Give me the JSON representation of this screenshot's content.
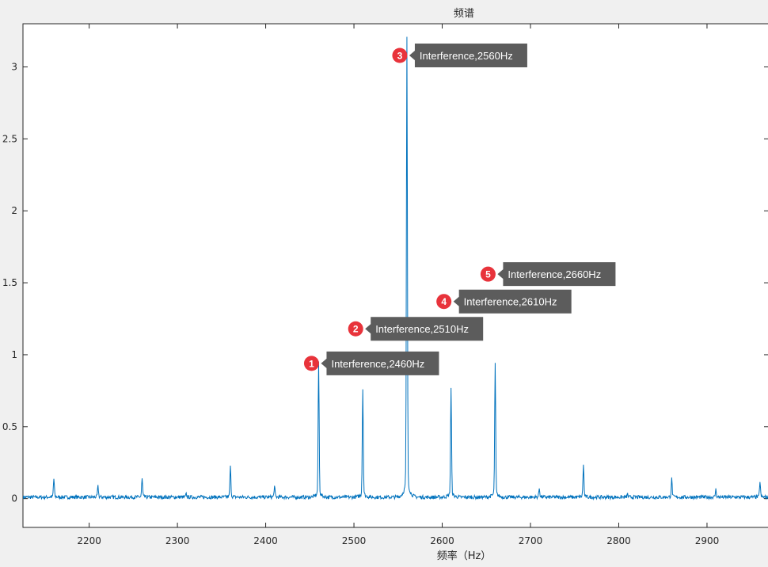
{
  "chart_data": {
    "type": "line",
    "title": "频谱",
    "xlabel": "频率（Hz）",
    "ylabel": "",
    "xlim": [
      2125,
      2970
    ],
    "ylim": [
      -0.2,
      3.3
    ],
    "xticks": [
      2200,
      2300,
      2400,
      2500,
      2600,
      2700,
      2800,
      2900
    ],
    "yticks": [
      0,
      0.5,
      1,
      1.5,
      2,
      2.5,
      3
    ],
    "ytick_labels": [
      "0",
      "0.5",
      "1",
      "1.5",
      "2",
      "2.5",
      "3"
    ],
    "grid": false,
    "line_color": "#0072bd",
    "baseline": 0.01,
    "peaks": [
      {
        "x": 2160,
        "y": 0.12
      },
      {
        "x": 2210,
        "y": 0.07
      },
      {
        "x": 2260,
        "y": 0.12
      },
      {
        "x": 2310,
        "y": 0.02
      },
      {
        "x": 2360,
        "y": 0.2
      },
      {
        "x": 2410,
        "y": 0.07
      },
      {
        "x": 2460,
        "y": 0.89
      },
      {
        "x": 2510,
        "y": 0.71
      },
      {
        "x": 2560,
        "y": 3.01
      },
      {
        "x": 2610,
        "y": 0.71
      },
      {
        "x": 2660,
        "y": 0.87
      },
      {
        "x": 2710,
        "y": 0.06
      },
      {
        "x": 2760,
        "y": 0.21
      },
      {
        "x": 2810,
        "y": 0.02
      },
      {
        "x": 2860,
        "y": 0.12
      },
      {
        "x": 2910,
        "y": 0.05
      },
      {
        "x": 2960,
        "y": 0.1
      }
    ],
    "annotations": [
      {
        "number": "1",
        "text": "Interference,2460Hz",
        "x": 2460,
        "y": 0.94
      },
      {
        "number": "2",
        "text": "Interference,2510Hz",
        "x": 2510,
        "y": 1.18
      },
      {
        "number": "3",
        "text": "Interference,2560Hz",
        "x": 2560,
        "y": 3.08
      },
      {
        "number": "4",
        "text": "Interference,2610Hz",
        "x": 2610,
        "y": 1.37
      },
      {
        "number": "5",
        "text": "Interference,2660Hz",
        "x": 2660,
        "y": 1.56
      }
    ],
    "annotation_colors": {
      "marker": "#e8333b",
      "callout": "#5c5c5c"
    }
  }
}
